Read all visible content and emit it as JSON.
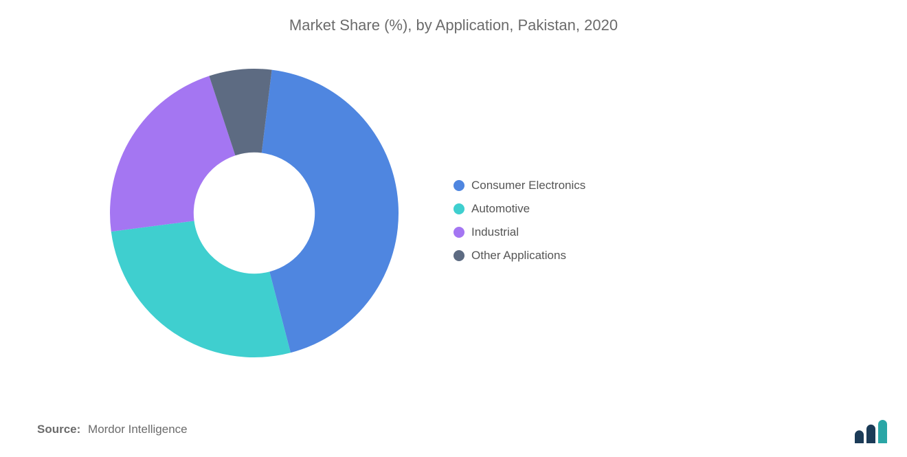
{
  "title": {
    "text": "Market Share (%), by Application, Pakistan, 2020",
    "fontsize": 22,
    "color": "#6b6b6b",
    "weight": 400
  },
  "chart": {
    "type": "donut",
    "inner_radius_ratio": 0.42,
    "outer_radius": 210,
    "start_angle_deg": -83,
    "segments": [
      {
        "label": "Consumer Electronics",
        "value": 44,
        "color": "#4f86e0"
      },
      {
        "label": "Automotive",
        "value": 27,
        "color": "#3fcfcf"
      },
      {
        "label": "Industrial",
        "value": 22,
        "color": "#a476f2"
      },
      {
        "label": "Other Applications",
        "value": 7,
        "color": "#5d6b82"
      }
    ],
    "background_color": "#ffffff"
  },
  "legend": {
    "fontsize": 17,
    "color": "#555555",
    "swatch_shape": "circle",
    "swatch_size": 16
  },
  "source": {
    "label": "Source:",
    "text": "Mordor Intelligence",
    "fontsize": 17,
    "label_weight": 700,
    "color": "#6b6b6b"
  },
  "logo": {
    "name": "mordor-logo",
    "bar_colors": [
      "#1b3b57",
      "#1b3b57",
      "#2aa6a6"
    ],
    "bar_heights": [
      0.55,
      0.8,
      1.0
    ]
  }
}
